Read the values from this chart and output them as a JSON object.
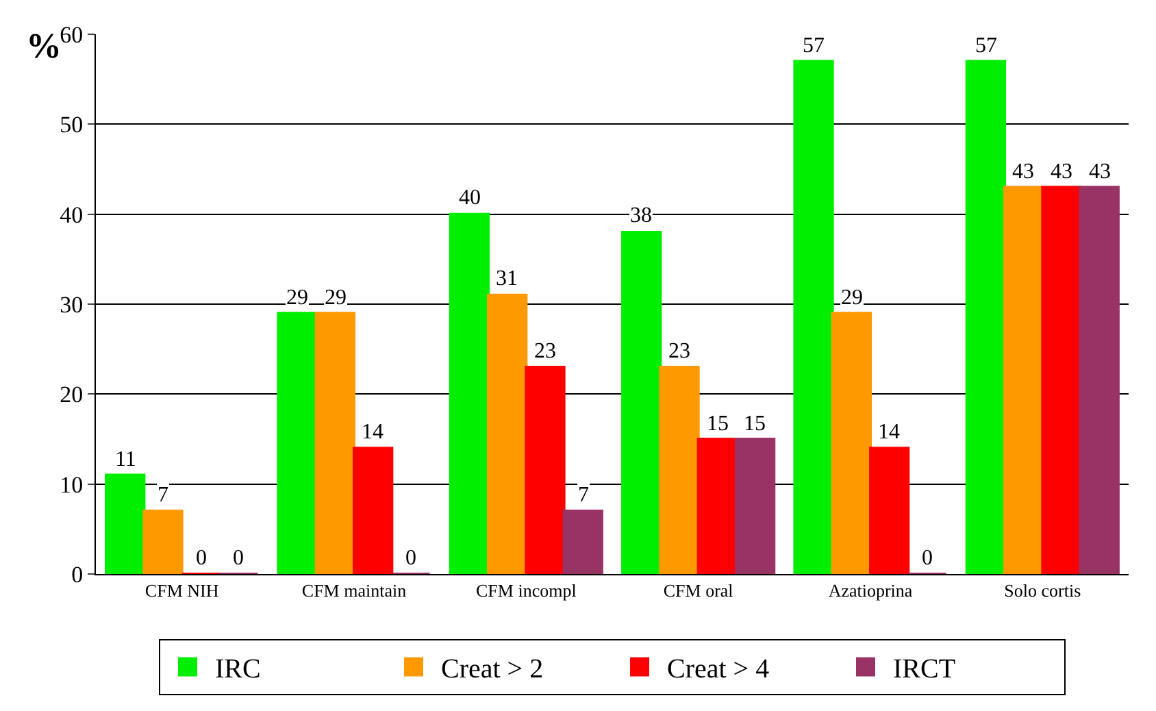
{
  "chart_data": {
    "type": "bar",
    "ylabel": "%",
    "categories": [
      "CFM NIH",
      "CFM maintain",
      "CFM incompl",
      "CFM oral",
      "Azatioprina",
      "Solo cortis"
    ],
    "series": [
      {
        "name": "IRC",
        "color": "#00ee00",
        "values": [
          11,
          29,
          40,
          38,
          57,
          57
        ]
      },
      {
        "name": "Creat > 2",
        "color": "#ff9900",
        "values": [
          7,
          29,
          31,
          23,
          29,
          43
        ]
      },
      {
        "name": "Creat > 4",
        "color": "#ff0000",
        "values": [
          0,
          14,
          23,
          15,
          14,
          43
        ]
      },
      {
        "name": "IRCT",
        "color": "#993366",
        "values": [
          0,
          0,
          7,
          15,
          0,
          43
        ]
      }
    ],
    "ylim": [
      0,
      60
    ],
    "yticks": [
      0,
      10,
      20,
      30,
      40,
      50,
      60
    ],
    "grid": "y",
    "legend": "bottom",
    "data_labels": true
  }
}
